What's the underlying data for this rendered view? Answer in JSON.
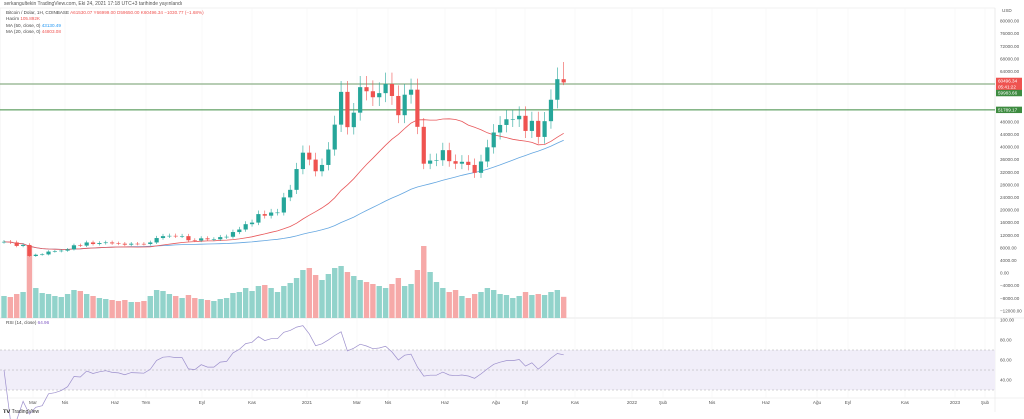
{
  "header": "serkangultekin TradingView.com, Eki 24, 2021 17:18 UTC+3 tarihinde yayınlandı",
  "legend": {
    "symbol": "Bitcoin / Dolar, 1H, COINBASE",
    "ohlc": "A61530.07 Y66999.00 D59650.00 K60496.34 −1030.77 (−1.68%)",
    "volume_label": "Hacim",
    "volume_value": "105.892K",
    "ma50_label": "MA (50, close, 0)",
    "ma50_value": "43130.49",
    "ma20_label": "MA (20, close, 0)",
    "ma20_value": "44803.08"
  },
  "rsi_legend": {
    "label": "RSI (14, close)",
    "value": "64.96"
  },
  "logo": "TradingView",
  "colors": {
    "up": "#26a69a",
    "down": "#ef5350",
    "ma50": "#64a6e0",
    "ma20": "#e8575a",
    "level_line": "#3d8b40",
    "rsi": "#9c8fcc",
    "rsi_band": "#f1eef9"
  },
  "chart_data": {
    "type": "candlestick",
    "timeframe": "weekly",
    "currency": "USD",
    "price_axis_ticks": [
      "80000.00",
      "76000.00",
      "72000.00",
      "68000.00",
      "64000.00",
      "48000.00",
      "44000.00",
      "40000.00",
      "36000.00",
      "32000.00",
      "28000.00",
      "24000.00",
      "20000.00",
      "16000.00",
      "12000.00",
      "8000.00",
      "4000.00",
      "0.00",
      "−4000.00",
      "−8000.00",
      "−12000.00"
    ],
    "price_axis_values": [
      80000,
      76000,
      72000,
      68000,
      64000,
      48000,
      44000,
      40000,
      36000,
      32000,
      28000,
      24000,
      20000,
      16000,
      12000,
      8000,
      4000,
      0,
      -4000,
      -8000,
      -12000
    ],
    "ylim": [
      -12000,
      80000
    ],
    "price_labels": {
      "last": "60496.34",
      "countdown": "05:41:22",
      "upper_level": "59983.66",
      "lower_level": "51789.17"
    },
    "horizontal_levels": [
      59983.66,
      51789.17
    ],
    "first_week": "2020-02-10",
    "closes": [
      9900,
      9700,
      8600,
      8900,
      5400,
      5800,
      5900,
      6800,
      6900,
      7100,
      7500,
      8800,
      8700,
      9700,
      9200,
      9500,
      9700,
      9400,
      9300,
      9000,
      9300,
      9250,
      9200,
      9700,
      11100,
      11700,
      11800,
      11700,
      11700,
      10400,
      10300,
      11000,
      10700,
      10700,
      11400,
      11500,
      13000,
      13800,
      15500,
      16000,
      18700,
      18200,
      19200,
      19200,
      24000,
      26400,
      33000,
      38200,
      36000,
      32300,
      34300,
      39200,
      47100,
      57500,
      46300,
      50900,
      59000,
      57700,
      55800,
      57100,
      60000,
      56200,
      50100,
      56600,
      58200,
      46400,
      34700,
      35700,
      35800,
      39000,
      35500,
      34700,
      35300,
      34300,
      31800,
      35400,
      39900,
      44600,
      47000,
      48800,
      48800,
      49900,
      45100,
      48300,
      43200,
      48200,
      55000,
      61530.07,
      60496.34
    ],
    "last_candle": {
      "open": 61530.07,
      "high": 66999.0,
      "low": 59650.0,
      "close": 60496.34
    },
    "volume_k": [
      110,
      105,
      120,
      130,
      360,
      150,
      125,
      120,
      110,
      105,
      120,
      140,
      135,
      120,
      110,
      100,
      95,
      90,
      85,
      90,
      80,
      80,
      85,
      110,
      140,
      135,
      120,
      110,
      100,
      115,
      100,
      95,
      90,
      85,
      95,
      100,
      125,
      130,
      150,
      135,
      160,
      165,
      150,
      130,
      160,
      175,
      200,
      240,
      250,
      215,
      190,
      220,
      250,
      260,
      230,
      210,
      190,
      180,
      170,
      160,
      150,
      170,
      200,
      160,
      170,
      240,
      360,
      230,
      180,
      150,
      130,
      140,
      110,
      100,
      120,
      130,
      150,
      140,
      120,
      115,
      100,
      110,
      130,
      115,
      120,
      115,
      130,
      140,
      105.892
    ],
    "rsi_axis_ticks": [
      "100.00",
      "80.00",
      "60.00",
      "40.00"
    ],
    "rsi_axis_values": [
      100,
      80,
      60,
      40
    ],
    "rsi_levels": [
      70,
      50,
      30
    ],
    "time_axis": [
      "Mar",
      "Nis",
      "Haz",
      "Tem",
      "Eyl",
      "Kas",
      "2021",
      "Mar",
      "Nis",
      "Haz",
      "Ağu",
      "Eyl",
      "Kas",
      "2022",
      "Şub",
      "Nis",
      "Haz",
      "Ağu",
      "Eyl",
      "Kas",
      "2023",
      "Şub"
    ]
  }
}
